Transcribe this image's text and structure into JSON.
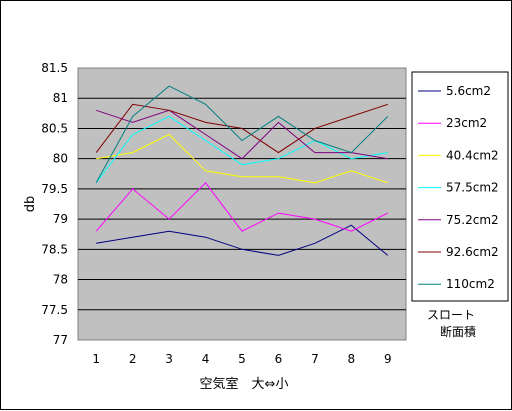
{
  "chart_data": {
    "type": "line",
    "title": "",
    "xlabel": "空気室　大⇔小",
    "ylabel": "db",
    "x": [
      1,
      2,
      3,
      4,
      5,
      6,
      7,
      8,
      9
    ],
    "ylim": [
      77,
      81.5
    ],
    "yticks": [
      "77",
      "77.5",
      "78",
      "78.5",
      "79",
      "79.5",
      "80",
      "80.5",
      "81",
      "81.5"
    ],
    "xticks": [
      "1",
      "2",
      "3",
      "4",
      "5",
      "6",
      "7",
      "8",
      "9"
    ],
    "grid": true,
    "legend_position": "right",
    "legend_caption": [
      "スロート",
      "断面積"
    ],
    "plot_background": "#c0c0c0",
    "series": [
      {
        "name": "5.6cm2",
        "color": "#000080",
        "values": [
          78.6,
          78.7,
          78.8,
          78.7,
          78.5,
          78.4,
          78.6,
          78.9,
          78.4
        ]
      },
      {
        "name": "23cm2",
        "color": "#ff00ff",
        "values": [
          78.8,
          79.5,
          79.0,
          79.6,
          78.8,
          79.1,
          79.0,
          78.8,
          79.1
        ]
      },
      {
        "name": "40.4cm2",
        "color": "#ffff00",
        "values": [
          80.0,
          80.1,
          80.4,
          79.8,
          79.7,
          79.7,
          79.6,
          79.8,
          79.6
        ]
      },
      {
        "name": "57.5cm2",
        "color": "#00ffff",
        "values": [
          79.6,
          80.4,
          80.7,
          80.3,
          79.9,
          80.0,
          80.3,
          80.0,
          80.1
        ]
      },
      {
        "name": "75.2cm2",
        "color": "#800080",
        "values": [
          80.8,
          80.6,
          80.8,
          80.4,
          80.0,
          80.6,
          80.1,
          80.1,
          80.0
        ]
      },
      {
        "name": "92.6cm2",
        "color": "#800000",
        "values": [
          80.1,
          80.9,
          80.8,
          80.6,
          80.5,
          80.1,
          80.5,
          80.7,
          80.9
        ]
      },
      {
        "name": "110cm2",
        "color": "#008080",
        "values": [
          79.6,
          80.7,
          81.2,
          80.9,
          80.3,
          80.7,
          80.3,
          80.1,
          80.7
        ]
      }
    ]
  }
}
